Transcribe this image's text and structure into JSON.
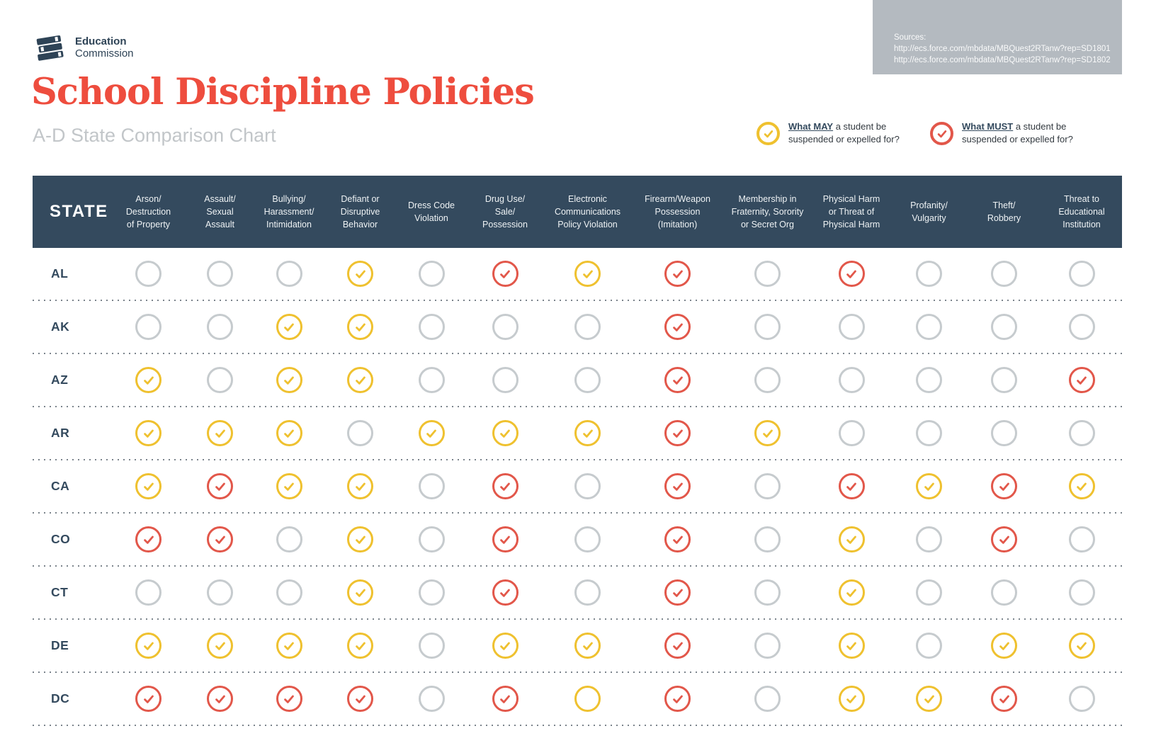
{
  "logo": {
    "line1": "Education",
    "line2": "Commission"
  },
  "title": "School Discipline Policies",
  "subtitle": "A-D State Comparison Chart",
  "sources": {
    "label": "Sources:",
    "urls": [
      "http://ecs.force.com/mbdata/MBQuest2RTanw?rep=SD1801",
      "http://ecs.force.com/mbdata/MBQuest2RTanw?rep=SD1802"
    ]
  },
  "legend": {
    "may": {
      "bold": "What MAY",
      "rest": " a student be suspended or expelled for?"
    },
    "must": {
      "bold": "What MUST",
      "rest": " a student be suspended or expelled for?"
    }
  },
  "colors": {
    "header_navy": "#344a5e",
    "title_red": "#ee4d3e",
    "may_yellow": "#efc12f",
    "must_red": "#e2574a",
    "empty_gray": "#c6cbce",
    "sources_bg": "#b4bac0"
  },
  "chart_data": {
    "type": "table",
    "state_header": "STATE",
    "cell_states_meaning": {
      "may": "yellow checked circle — student MAY be suspended/expelled",
      "must": "red checked circle — student MUST be suspended/expelled",
      "may_empty": "yellow circle without check",
      "none": "empty gray circle"
    },
    "columns": [
      "Arson/\nDestruction\nof Property",
      "Assault/\nSexual\nAssault",
      "Bullying/\nHarassment/\nIntimidation",
      "Defiant or\nDisruptive\nBehavior",
      "Dress Code\nViolation",
      "Drug Use/\nSale/\nPossession",
      "Electronic\nCommunications\nPolicy Violation",
      "Firearm/Weapon\nPossession\n(Imitation)",
      "Membership in\nFraternity, Sorority\nor Secret Org",
      "Physical Harm\nor Threat of\nPhysical Harm",
      "Profanity/\nVulgarity",
      "Theft/\nRobbery",
      "Threat to\nEducational\nInstitution"
    ],
    "rows": [
      {
        "state": "AL",
        "cells": [
          "none",
          "none",
          "none",
          "may",
          "none",
          "must",
          "may",
          "must",
          "none",
          "must",
          "none",
          "none",
          "none"
        ]
      },
      {
        "state": "AK",
        "cells": [
          "none",
          "none",
          "may",
          "may",
          "none",
          "none",
          "none",
          "must",
          "none",
          "none",
          "none",
          "none",
          "none"
        ]
      },
      {
        "state": "AZ",
        "cells": [
          "may",
          "none",
          "may",
          "may",
          "none",
          "none",
          "none",
          "must",
          "none",
          "none",
          "none",
          "none",
          "must"
        ]
      },
      {
        "state": "AR",
        "cells": [
          "may",
          "may",
          "may",
          "none",
          "may",
          "may",
          "may",
          "must",
          "may",
          "none",
          "none",
          "none",
          "none"
        ]
      },
      {
        "state": "CA",
        "cells": [
          "may",
          "must",
          "may",
          "may",
          "none",
          "must",
          "none",
          "must",
          "none",
          "must",
          "may",
          "must",
          "may"
        ]
      },
      {
        "state": "CO",
        "cells": [
          "must",
          "must",
          "none",
          "may",
          "none",
          "must",
          "none",
          "must",
          "none",
          "may",
          "none",
          "must",
          "none"
        ]
      },
      {
        "state": "CT",
        "cells": [
          "none",
          "none",
          "none",
          "may",
          "none",
          "must",
          "none",
          "must",
          "none",
          "may",
          "none",
          "none",
          "none"
        ]
      },
      {
        "state": "DE",
        "cells": [
          "may",
          "may",
          "may",
          "may",
          "none",
          "may",
          "may",
          "must",
          "none",
          "may",
          "none",
          "may",
          "may"
        ]
      },
      {
        "state": "DC",
        "cells": [
          "must",
          "must",
          "must",
          "must",
          "none",
          "must",
          "may_empty",
          "must",
          "none",
          "may",
          "may",
          "must",
          "none"
        ]
      }
    ]
  }
}
